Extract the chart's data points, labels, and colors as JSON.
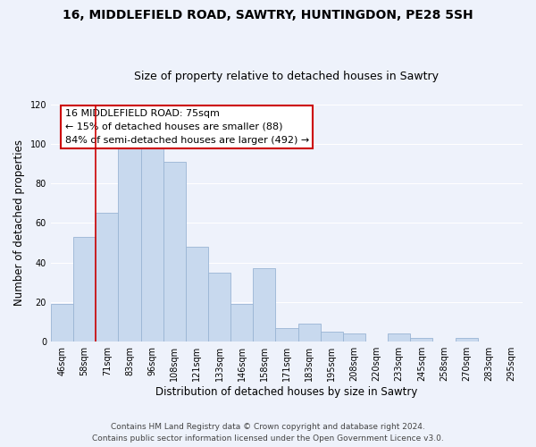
{
  "title": "16, MIDDLEFIELD ROAD, SAWTRY, HUNTINGDON, PE28 5SH",
  "subtitle": "Size of property relative to detached houses in Sawtry",
  "xlabel": "Distribution of detached houses by size in Sawtry",
  "ylabel": "Number of detached properties",
  "bar_color": "#c8d9ee",
  "bar_edge_color": "#9ab5d4",
  "highlight_line_color": "#cc0000",
  "categories": [
    "46sqm",
    "58sqm",
    "71sqm",
    "83sqm",
    "96sqm",
    "108sqm",
    "121sqm",
    "133sqm",
    "146sqm",
    "158sqm",
    "171sqm",
    "183sqm",
    "195sqm",
    "208sqm",
    "220sqm",
    "233sqm",
    "245sqm",
    "258sqm",
    "270sqm",
    "283sqm",
    "295sqm"
  ],
  "values": [
    19,
    53,
    65,
    101,
    98,
    91,
    48,
    35,
    19,
    37,
    7,
    9,
    5,
    4,
    0,
    4,
    2,
    0,
    2,
    0,
    0
  ],
  "ylim": [
    0,
    120
  ],
  "yticks": [
    0,
    20,
    40,
    60,
    80,
    100,
    120
  ],
  "annotation_title": "16 MIDDLEFIELD ROAD: 75sqm",
  "annotation_line1": "← 15% of detached houses are smaller (88)",
  "annotation_line2": "84% of semi-detached houses are larger (492) →",
  "annotation_box_edge_color": "#cc0000",
  "annotation_box_face_color": "#ffffff",
  "vline_x_index": 2,
  "footer1": "Contains HM Land Registry data © Crown copyright and database right 2024.",
  "footer2": "Contains public sector information licensed under the Open Government Licence v3.0.",
  "background_color": "#eef2fb",
  "grid_color": "#ffffff",
  "title_fontsize": 10,
  "subtitle_fontsize": 9,
  "tick_fontsize": 7,
  "ylabel_fontsize": 8.5,
  "xlabel_fontsize": 8.5,
  "annotation_fontsize": 8,
  "footer_fontsize": 6.5
}
